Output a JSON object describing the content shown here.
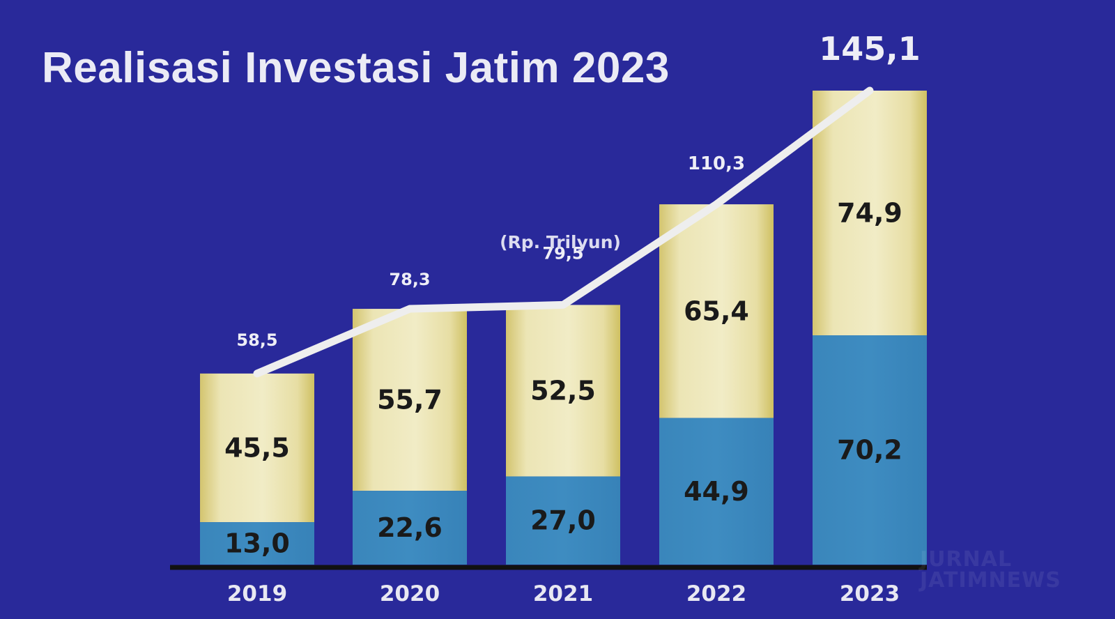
{
  "title": "Realisasi Investasi Jatim 2023",
  "unit_note": "(Rp. Trilyun)",
  "watermark": [
    "JURNAL",
    "JATIMNEWS"
  ],
  "colors": {
    "background": "#29299a",
    "lower_segment": "#3c89bd",
    "upper_segment_light": "#f1ecc6",
    "upper_segment_dark": "#d3c46f",
    "line": "#eeeeee",
    "axis": "#111111"
  },
  "chart_data": {
    "type": "bar",
    "stacked": true,
    "categories": [
      "2019",
      "2020",
      "2021",
      "2022",
      "2023"
    ],
    "series": [
      {
        "values": [
          13.0,
          22.6,
          27.0,
          44.9,
          70.2
        ],
        "labels": [
          "13,0",
          "22,6",
          "27,0",
          "44,9",
          "70,2"
        ]
      },
      {
        "values": [
          45.5,
          55.7,
          52.5,
          65.4,
          74.9
        ],
        "labels": [
          "45,5",
          "55,7",
          "52,5",
          "65,4",
          "74,9"
        ]
      }
    ],
    "totals": {
      "values": [
        58.5,
        78.3,
        79.5,
        110.3,
        145.1
      ],
      "labels": [
        "58,5",
        "78,3",
        "79,5",
        "110,3",
        "145,1"
      ]
    },
    "ylim": [
      0,
      145.1
    ],
    "grid": false,
    "legend": "none"
  }
}
